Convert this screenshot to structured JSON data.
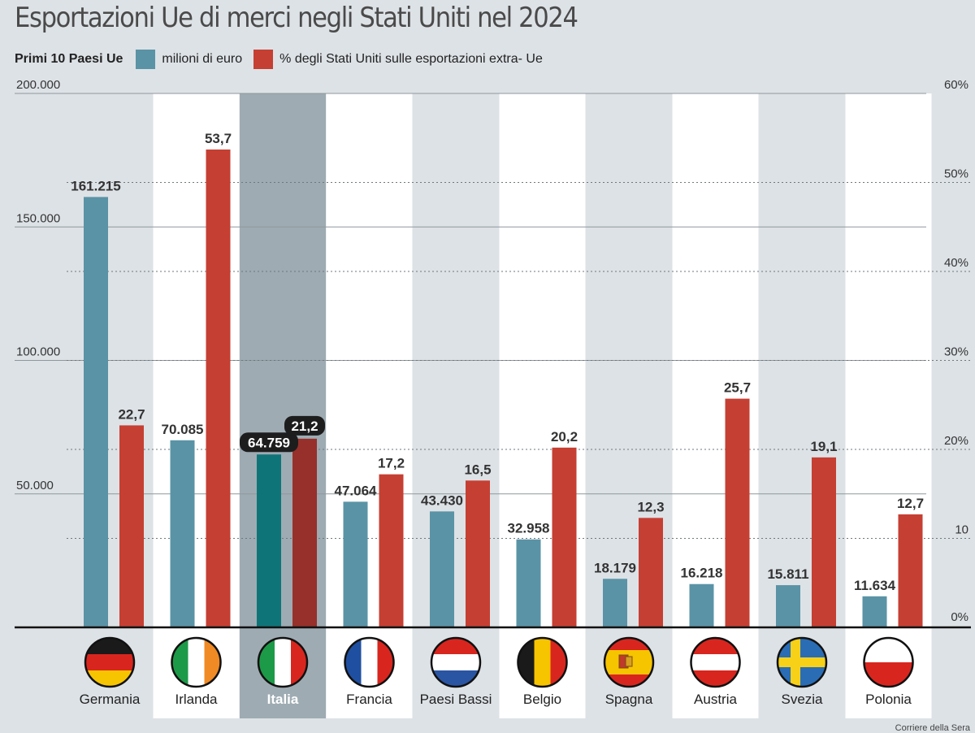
{
  "title": "Esportazioni Ue di merci negli Stati Uniti nel 2024",
  "legend": {
    "heading": "Primi 10 Paesi Ue",
    "series1_label": "milioni di euro",
    "series2_label": "% degli Stati Uniti sulle esportazioni extra- Ue"
  },
  "source": "Corriere della Sera",
  "colors": {
    "series1": "#5a93a6",
    "series2": "#c63f33",
    "series1_highlight": "#0f7478",
    "series2_highlight": "#97302a",
    "highlight_band": "#9eabb2",
    "white_band": "#ffffff",
    "background": "#dde2e6"
  },
  "chart_data": {
    "type": "bar",
    "title": "Esportazioni Ue di merci negli Stati Uniti nel 2024",
    "categories": [
      "Germania",
      "Irlanda",
      "Italia",
      "Francia",
      "Paesi Bassi",
      "Belgio",
      "Spagna",
      "Austria",
      "Svezia",
      "Polonia"
    ],
    "highlight_category": "Italia",
    "flags": [
      "germany-flag",
      "ireland-flag",
      "italy-flag",
      "france-flag",
      "netherlands-flag",
      "belgium-flag",
      "spain-flag",
      "austria-flag",
      "sweden-flag",
      "poland-flag"
    ],
    "series": [
      {
        "name": "milioni di euro",
        "axis": "left",
        "values": [
          161215,
          70085,
          64759,
          47064,
          43430,
          32958,
          18179,
          16218,
          15811,
          11634
        ],
        "labels": [
          "161.215",
          "70.085",
          "64.759",
          "47.064",
          "43.430",
          "32.958",
          "18.179",
          "16.218",
          "15.811",
          "11.634"
        ]
      },
      {
        "name": "% degli Stati Uniti sulle esportazioni extra- Ue",
        "axis": "right",
        "values": [
          22.7,
          53.7,
          21.2,
          17.2,
          16.5,
          20.2,
          12.3,
          25.7,
          19.1,
          12.7
        ],
        "labels": [
          "22,7",
          "53,7",
          "21,2",
          "17,2",
          "16,5",
          "20,2",
          "12,3",
          "25,7",
          "19,1",
          "12,7"
        ]
      }
    ],
    "left_axis": {
      "ylim": [
        0,
        200000
      ],
      "ticks": [
        50000,
        100000,
        150000,
        200000
      ],
      "tick_labels": [
        "50.000",
        "100.000",
        "150.000",
        "200.000"
      ]
    },
    "right_axis": {
      "ylim": [
        0,
        60
      ],
      "ticks": [
        0,
        10,
        20,
        30,
        40,
        50,
        60
      ],
      "tick_labels": [
        "0%",
        "10",
        "20%",
        "30%",
        "40%",
        "50%",
        "60%"
      ]
    }
  }
}
